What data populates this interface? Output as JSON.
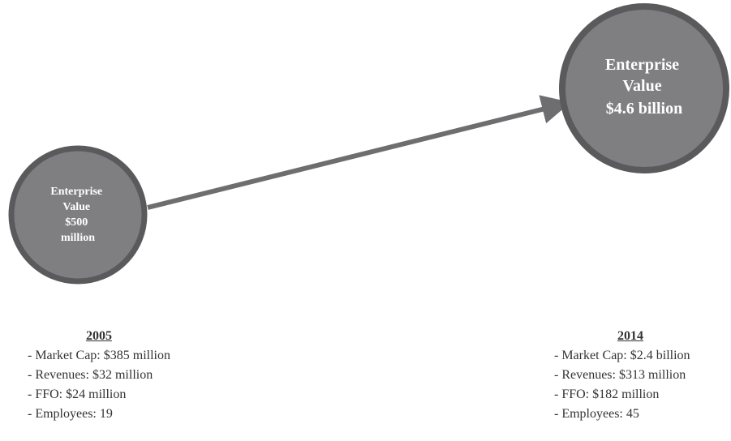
{
  "diagram": {
    "nodes": [
      {
        "id": "ev-2005",
        "lines": [
          "Enterprise",
          "Value",
          "$500",
          "million"
        ],
        "fill": "#7f7f81",
        "stroke": "#5a5a5c"
      },
      {
        "id": "ev-2014",
        "lines": [
          "Enterprise",
          "Value",
          "$4.6 billion"
        ],
        "fill": "#7f7f81",
        "stroke": "#5a5a5c"
      }
    ],
    "arrow": {
      "from": "ev-2005",
      "to": "ev-2014",
      "color": "#6e6e70"
    }
  },
  "stats_2005": {
    "year": "2005",
    "items": [
      "- Market Cap: $385 million",
      "- Revenues: $32 million",
      "- FFO: $24 million",
      "- Employees: 19"
    ]
  },
  "stats_2014": {
    "year": "2014",
    "items": [
      "- Market Cap: $2.4 billion",
      "- Revenues: $313 million",
      "- FFO: $182 million",
      "- Employees: 45"
    ]
  }
}
